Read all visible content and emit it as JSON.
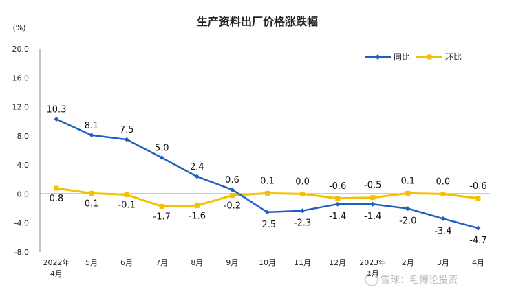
{
  "chart_data": {
    "type": "line",
    "title": "生产资料出厂价格涨跌幅",
    "unit_label": "(%)",
    "ylim": [
      -8,
      20
    ],
    "yticks": [
      "20.0",
      "16.0",
      "12.0",
      "8.0",
      "4.0",
      "0.0",
      "-4.0",
      "-8.0"
    ],
    "ytick_values": [
      20,
      16,
      12,
      8,
      4,
      0,
      -4,
      -8
    ],
    "categories": [
      "2022年\n4月",
      "5月",
      "6月",
      "7月",
      "8月",
      "9月",
      "10月",
      "11月",
      "12月",
      "2023年\n1月",
      "2月",
      "3月",
      "4月"
    ],
    "series": [
      {
        "name": "同比",
        "color": "#1f5fc4",
        "values": [
          10.3,
          8.1,
          7.5,
          5.0,
          2.4,
          0.6,
          -2.5,
          -2.3,
          -1.4,
          -1.4,
          -2.0,
          -3.4,
          -4.7
        ],
        "labels": [
          "10.3",
          "8.1",
          "7.5",
          "5.0",
          "2.4",
          "0.6",
          "-2.5",
          "-2.3",
          "-1.4",
          "-1.4",
          "-2.0",
          "-3.4",
          "-4.7"
        ]
      },
      {
        "name": "环比",
        "color": "#f5c000",
        "values": [
          0.8,
          0.1,
          -0.1,
          -1.7,
          -1.6,
          -0.2,
          0.1,
          0.0,
          -0.6,
          -0.5,
          0.1,
          0.0,
          -0.6
        ],
        "labels": [
          "0.8",
          "0.1",
          "-0.1",
          "-1.7",
          "-1.6",
          "-0.2",
          "0.1",
          "0.0",
          "-0.6",
          "-0.5",
          "0.1",
          "0.0",
          "-0.6"
        ]
      }
    ],
    "legend_position": "top-right",
    "grid": false
  },
  "watermark": "雪球：毛博论投资"
}
